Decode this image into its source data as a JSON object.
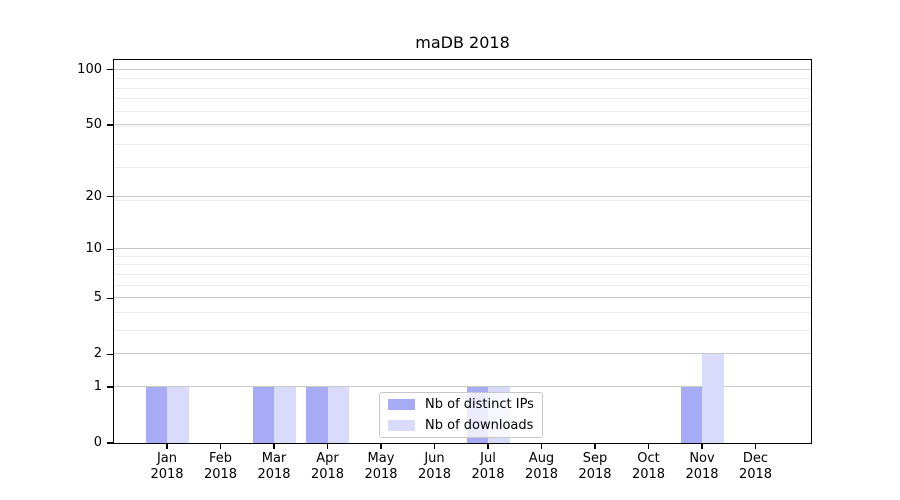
{
  "chart_data": {
    "type": "bar",
    "title": "maDB 2018",
    "categories": [
      "Jan 2018",
      "Feb 2018",
      "Mar 2018",
      "Apr 2018",
      "May 2018",
      "Jun 2018",
      "Jul 2018",
      "Aug 2018",
      "Sep 2018",
      "Oct 2018",
      "Nov 2018",
      "Dec 2018"
    ],
    "series": [
      {
        "name": "Nb of distinct IPs",
        "color": "#a7aaf4",
        "values": [
          1,
          0,
          1,
          1,
          0,
          0,
          1,
          0,
          0,
          0,
          1,
          0
        ]
      },
      {
        "name": "Nb of downloads",
        "color": "#d9dbfa",
        "values": [
          1,
          0,
          1,
          1,
          0,
          0,
          1,
          0,
          0,
          0,
          2,
          0
        ]
      }
    ],
    "xlabel": "",
    "ylabel": "",
    "yscale": "log1p",
    "ylim": [
      0,
      113
    ],
    "yticks": [
      0,
      1,
      2,
      5,
      10,
      20,
      50,
      100
    ],
    "minor_yticks": [
      3,
      4,
      6,
      7,
      8,
      9,
      19,
      29,
      39,
      49,
      59,
      69,
      79,
      89
    ],
    "grid": "horizontal",
    "legend_position": "lower center inside",
    "colors": {
      "major_grid": "#c9c9c9",
      "minor_grid": "#ebebeb",
      "spine": "#000000",
      "background": "#ffffff"
    }
  }
}
